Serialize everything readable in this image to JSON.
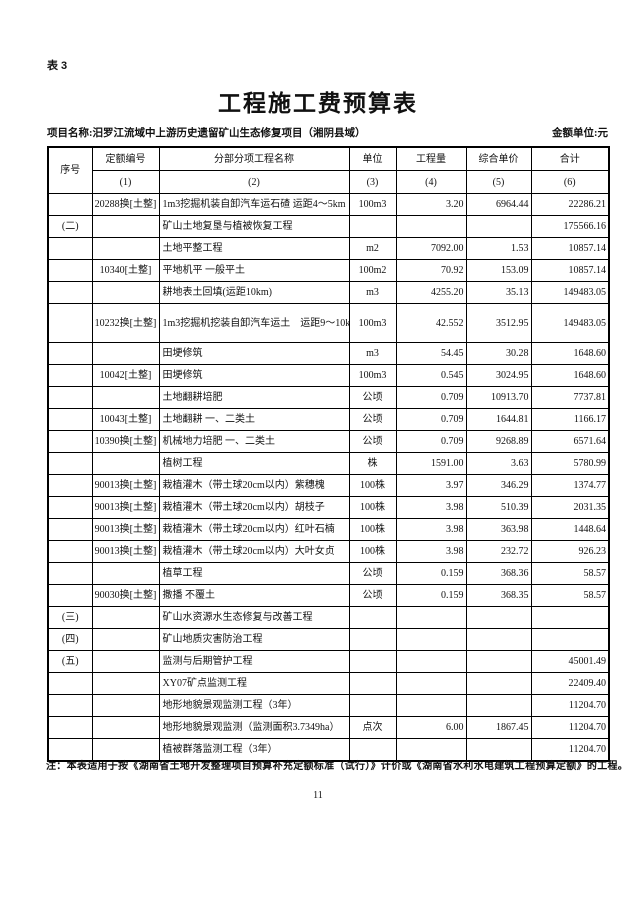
{
  "document": {
    "table_label": "表 3",
    "title": "工程施工费预算表",
    "project_name": "项目名称:汨罗江流域中上游历史遗留矿山生态修复项目（湘阴县域）",
    "amount_unit": "金额单位:元",
    "note": "注：本表适用于按《湖南省土地开发整理项目预算补充定额标准（试行）》计价或《湖南省水利水电建筑工程预算定额》的工程。",
    "page_number": "11"
  },
  "table": {
    "headers": {
      "seq": "序号",
      "code": "定额编号",
      "name": "分部分项工程名称",
      "unit": "单位",
      "quantity": "工程量",
      "unit_price": "综合单价",
      "total": "合计"
    },
    "col_numbers": [
      "(1)",
      "(2)",
      "(3)",
      "(4)",
      "(5)",
      "(6)"
    ],
    "tall_rows": [
      5
    ],
    "rows": [
      {
        "seq": "",
        "code": "20288换[土整]",
        "name": "1m3挖掘机装自卸汽车运石碴 运距4～5km",
        "unit": "100m3",
        "quantity": "3.20",
        "unit_price": "6964.44",
        "total": "22286.21"
      },
      {
        "seq": "(二)",
        "code": "",
        "name": "矿山土地复垦与植被恢复工程",
        "unit": "",
        "quantity": "",
        "unit_price": "",
        "total": "175566.16"
      },
      {
        "seq": "",
        "code": "",
        "name": "土地平整工程",
        "unit": "m2",
        "quantity": "7092.00",
        "unit_price": "1.53",
        "total": "10857.14"
      },
      {
        "seq": "",
        "code": "10340[土整]",
        "name": "平地机平 一般平土",
        "unit": "100m2",
        "quantity": "70.92",
        "unit_price": "153.09",
        "total": "10857.14"
      },
      {
        "seq": "",
        "code": "",
        "name": "耕地表土回填(运距10km)",
        "unit": "m3",
        "quantity": "4255.20",
        "unit_price": "35.13",
        "total": "149483.05"
      },
      {
        "seq": "",
        "code": "10232换[土整]",
        "name": "1m3挖掘机挖装自卸汽车运土　运距9～10km",
        "unit": "100m3",
        "quantity": "42.552",
        "unit_price": "3512.95",
        "total": "149483.05"
      },
      {
        "seq": "",
        "code": "",
        "name": "田埂修筑",
        "unit": "m3",
        "quantity": "54.45",
        "unit_price": "30.28",
        "total": "1648.60"
      },
      {
        "seq": "",
        "code": "10042[土整]",
        "name": "田埂修筑",
        "unit": "100m3",
        "quantity": "0.545",
        "unit_price": "3024.95",
        "total": "1648.60"
      },
      {
        "seq": "",
        "code": "",
        "name": "土地翻耕培肥",
        "unit": "公顷",
        "quantity": "0.709",
        "unit_price": "10913.70",
        "total": "7737.81"
      },
      {
        "seq": "",
        "code": "10043[土整]",
        "name": "土地翻耕 一、二类土",
        "unit": "公顷",
        "quantity": "0.709",
        "unit_price": "1644.81",
        "total": "1166.17"
      },
      {
        "seq": "",
        "code": "10390换[土整]",
        "name": "机械地力培肥 一、二类土",
        "unit": "公顷",
        "quantity": "0.709",
        "unit_price": "9268.89",
        "total": "6571.64"
      },
      {
        "seq": "",
        "code": "",
        "name": "植树工程",
        "unit": "株",
        "quantity": "1591.00",
        "unit_price": "3.63",
        "total": "5780.99"
      },
      {
        "seq": "",
        "code": "90013换[土整]",
        "name": "栽植灌木（带土球20cm以内）紫穗槐",
        "unit": "100株",
        "quantity": "3.97",
        "unit_price": "346.29",
        "total": "1374.77"
      },
      {
        "seq": "",
        "code": "90013换[土整]",
        "name": "栽植灌木（带土球20cm以内）胡枝子",
        "unit": "100株",
        "quantity": "3.98",
        "unit_price": "510.39",
        "total": "2031.35"
      },
      {
        "seq": "",
        "code": "90013换[土整]",
        "name": "栽植灌木（带土球20cm以内）红叶石楠",
        "unit": "100株",
        "quantity": "3.98",
        "unit_price": "363.98",
        "total": "1448.64"
      },
      {
        "seq": "",
        "code": "90013换[土整]",
        "name": "栽植灌木（带土球20cm以内）大叶女贞",
        "unit": "100株",
        "quantity": "3.98",
        "unit_price": "232.72",
        "total": "926.23"
      },
      {
        "seq": "",
        "code": "",
        "name": "植草工程",
        "unit": "公顷",
        "quantity": "0.159",
        "unit_price": "368.36",
        "total": "58.57"
      },
      {
        "seq": "",
        "code": "90030换[土整]",
        "name": "撒播 不覆土",
        "unit": "公顷",
        "quantity": "0.159",
        "unit_price": "368.35",
        "total": "58.57"
      },
      {
        "seq": "(三)",
        "code": "",
        "name": "矿山水资源水生态修复与改善工程",
        "unit": "",
        "quantity": "",
        "unit_price": "",
        "total": ""
      },
      {
        "seq": "(四)",
        "code": "",
        "name": "矿山地质灾害防治工程",
        "unit": "",
        "quantity": "",
        "unit_price": "",
        "total": ""
      },
      {
        "seq": "(五)",
        "code": "",
        "name": "监测与后期管护工程",
        "unit": "",
        "quantity": "",
        "unit_price": "",
        "total": "45001.49"
      },
      {
        "seq": "",
        "code": "",
        "name": "XY07矿点监测工程",
        "unit": "",
        "quantity": "",
        "unit_price": "",
        "total": "22409.40"
      },
      {
        "seq": "",
        "code": "",
        "name": "地形地貌景观监测工程（3年）",
        "unit": "",
        "quantity": "",
        "unit_price": "",
        "total": "11204.70"
      },
      {
        "seq": "",
        "code": "",
        "name": "地形地貌景观监测（监测面积3.7349ha）",
        "unit": "点次",
        "quantity": "6.00",
        "unit_price": "1867.45",
        "total": "11204.70"
      },
      {
        "seq": "",
        "code": "",
        "name": "植被群落监测工程（3年）",
        "unit": "",
        "quantity": "",
        "unit_price": "",
        "total": "11204.70"
      }
    ]
  }
}
